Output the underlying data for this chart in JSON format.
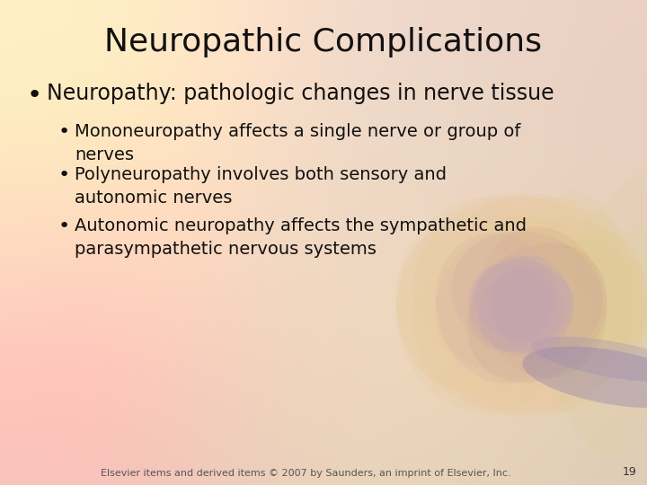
{
  "title": "Neuropathic Complications",
  "title_fontsize": 26,
  "title_color": "#111111",
  "bullet1": "Neuropathy: pathologic changes in nerve tissue",
  "bullet1_fontsize": 17,
  "sub_bullets": [
    "Mononeuropathy affects a single nerve or group of\nnerves",
    "Polyneuropathy involves both sensory and\nautonomic nerves",
    "Autonomic neuropathy affects the sympathetic and\nparasympathetic nervous systems"
  ],
  "sub_bullet_fontsize": 14,
  "footer": "Elsevier items and derived items © 2007 by Saunders, an imprint of Elsevier, Inc.",
  "page_number": "19",
  "footer_fontsize": 8,
  "text_color": "#111111"
}
